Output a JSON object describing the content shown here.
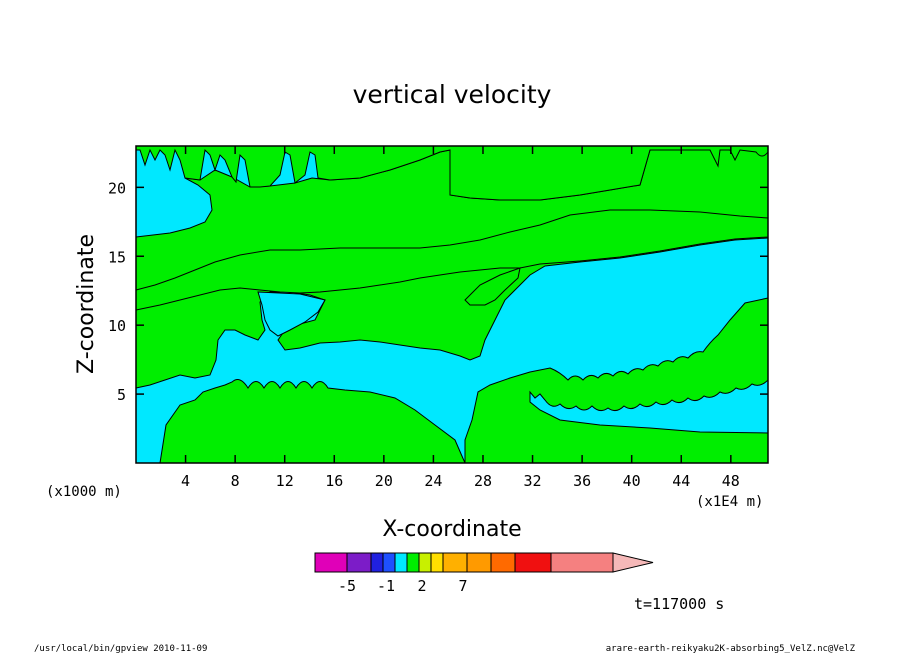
{
  "chart_data": {
    "type": "heatmap",
    "title": "vertical velocity",
    "xlabel": "X-coordinate",
    "ylabel": "Z-coordinate",
    "x_unit_left": "(x1000 m)",
    "x_unit_right": "(x1E4 m)",
    "xticks": [
      "4",
      "8",
      "12",
      "16",
      "20",
      "24",
      "28",
      "32",
      "36",
      "40",
      "44",
      "48"
    ],
    "xtick_values": [
      4,
      8,
      12,
      16,
      20,
      24,
      28,
      32,
      36,
      40,
      44,
      48
    ],
    "yticks": [
      "5",
      "10",
      "15",
      "20"
    ],
    "ytick_values": [
      5,
      10,
      15,
      20
    ],
    "xlim": [
      0,
      51
    ],
    "ylim": [
      0,
      23
    ],
    "regions": [
      {
        "level": "-1 to 0",
        "color": "#00e8ff",
        "role": "background"
      },
      {
        "level": "0 to 1",
        "color": "#00ee00"
      }
    ],
    "colorbar": {
      "colors": [
        "#e000b8",
        "#7c1cc8",
        "#2020e0",
        "#1e50ff",
        "#00e8ff",
        "#00ee00",
        "#c8f000",
        "#ffe000",
        "#ffb000",
        "#ff9a00",
        "#ff6a00",
        "#f01010",
        "#f58080",
        "#f5b8b8"
      ],
      "labels": [
        "-5",
        "-1",
        "2",
        "7"
      ]
    },
    "time_label": "t=117000 s"
  },
  "footer": {
    "left": "/usr/local/bin/gpview  2010-11-09",
    "right": "arare-earth-reikyaku2K-absorbing5_VelZ.nc@VelZ"
  }
}
